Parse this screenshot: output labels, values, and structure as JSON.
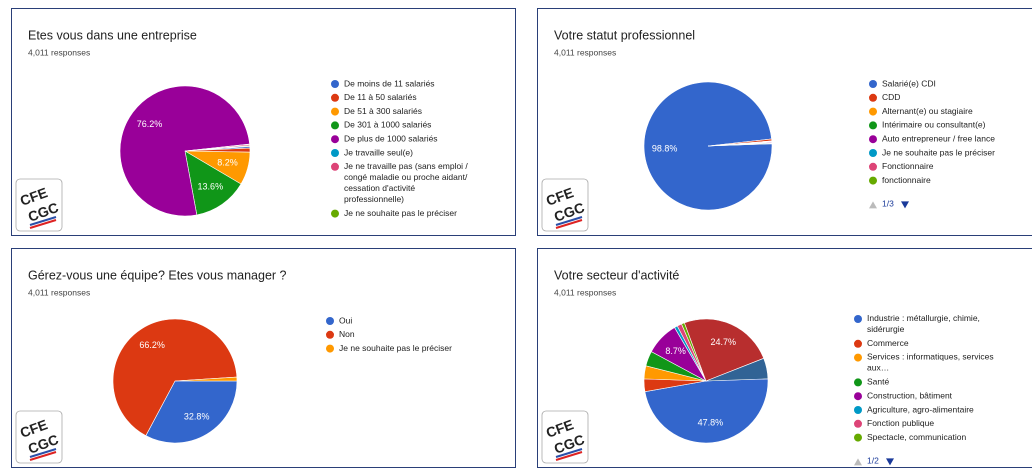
{
  "logo_text": [
    "CFE",
    "CGC"
  ],
  "chart_data": [
    {
      "type": "pie",
      "title": "Etes vous dans une entreprise",
      "subtitle": "4,011 responses",
      "categories": [
        "De moins de 11 salariés",
        "De 11 à 50 salariés",
        "De 51 à 300 salariés",
        "De 301 à 1000 salariés",
        "De plus de 1000 salariés",
        "Je travaille seul(e)",
        "Je ne travaille pas (sans emploi / congé maladie ou proche aidant/ cessation d'activité professionnelle)",
        "Je ne souhaite pas le préciser"
      ],
      "values": [
        0.4,
        1.0,
        8.2,
        13.6,
        76.2,
        0.1,
        0.3,
        0.2
      ],
      "value_labels": [
        null,
        null,
        "8.2%",
        "13.6%",
        "76.2%",
        null,
        null,
        null
      ],
      "colors": [
        "#3366cc",
        "#dc3912",
        "#ff9900",
        "#109618",
        "#990099",
        "#0099c6",
        "#dd4477",
        "#66aa00"
      ]
    },
    {
      "type": "pie",
      "title": "Votre statut professionnel",
      "subtitle": "4,011 responses",
      "categories": [
        "Salarié(e) CDI",
        "CDD",
        "Alternant(e) ou stagiaire",
        "Intérimaire ou consultant(e)",
        "Auto entrepreneur / free lance",
        "Je ne souhaite pas le préciser",
        "Fonctionnaire",
        "fonctionnaire"
      ],
      "values": [
        98.8,
        0.5,
        0.1,
        0.1,
        0.2,
        0.2,
        0.05,
        0.05
      ],
      "value_labels": [
        "98.8%",
        null,
        null,
        null,
        null,
        null,
        null,
        null
      ],
      "colors": [
        "#3366cc",
        "#dc3912",
        "#ff9900",
        "#109618",
        "#990099",
        "#0099c6",
        "#dd4477",
        "#66aa00"
      ],
      "legend_page": "1/3"
    },
    {
      "type": "pie",
      "title": "Gérez-vous une équipe? Etes vous manager ?",
      "subtitle": "4,011 responses",
      "categories": [
        "Oui",
        "Non",
        "Je ne souhaite pas le préciser"
      ],
      "values": [
        32.8,
        66.2,
        1.0
      ],
      "value_labels": [
        "32.8%",
        "66.2%",
        null
      ],
      "colors": [
        "#3366cc",
        "#dc3912",
        "#ff9900"
      ]
    },
    {
      "type": "pie",
      "title": "Votre secteur d'activité",
      "subtitle": "4,011 responses",
      "categories": [
        "Industrie : métallurgie, chimie, sidérurgie",
        "Commerce",
        "Services : informatiques, services aux…",
        "Santé",
        "Construction, bâtiment",
        "Agriculture, agro-alimentaire",
        "Fonction publique",
        "Spectacle, communication",
        null,
        null
      ],
      "values": [
        47.8,
        3.3,
        3.4,
        3.9,
        8.7,
        0.8,
        1.2,
        0.8,
        24.7,
        5.4
      ],
      "value_labels": [
        "47.8%",
        null,
        null,
        null,
        "8.7%",
        null,
        null,
        null,
        "24.7%",
        null
      ],
      "colors": [
        "#3366cc",
        "#dc3912",
        "#ff9900",
        "#109618",
        "#990099",
        "#0099c6",
        "#dd4477",
        "#66aa00",
        "#b82e2e",
        "#316395"
      ],
      "legend_page": "1/2"
    }
  ]
}
